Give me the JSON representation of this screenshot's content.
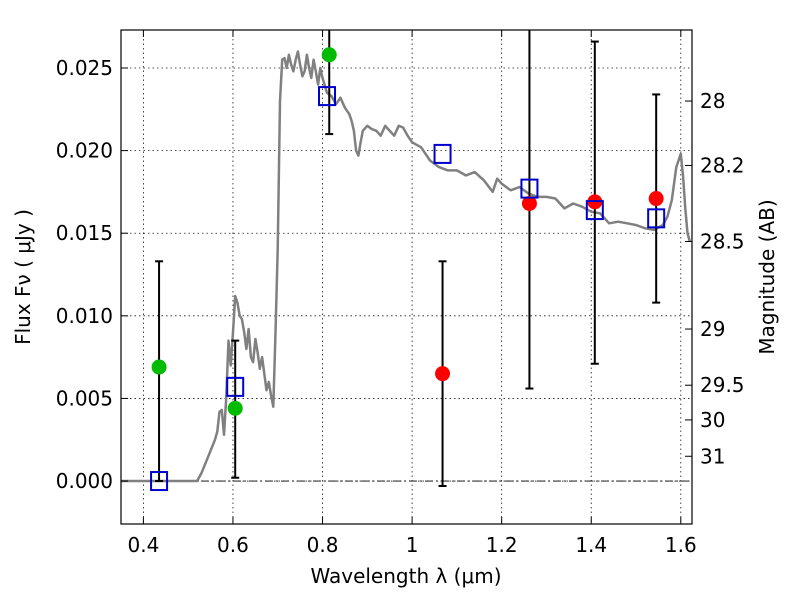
{
  "chart_data": {
    "type": "scatter",
    "xlabel": "Wavelength  λ (μm)",
    "ylabel": "Flux  Fν  ( μJy )",
    "right_ylabel": "Magnitude (AB)",
    "xlim": [
      0.35,
      1.625
    ],
    "ylim": [
      -0.0026,
      0.0273
    ],
    "grid": true,
    "x_ticks": [
      {
        "value": 0.4,
        "label": "0.4"
      },
      {
        "value": 0.6,
        "label": "0.6"
      },
      {
        "value": 0.8,
        "label": "0.8"
      },
      {
        "value": 1.0,
        "label": "1"
      },
      {
        "value": 1.2,
        "label": "1.2"
      },
      {
        "value": 1.4,
        "label": "1.4"
      },
      {
        "value": 1.6,
        "label": "1.6"
      }
    ],
    "y_ticks": [
      {
        "value": 0.0,
        "label": "0.000"
      },
      {
        "value": 0.005,
        "label": "0.005"
      },
      {
        "value": 0.01,
        "label": "0.010"
      },
      {
        "value": 0.015,
        "label": "0.015"
      },
      {
        "value": 0.02,
        "label": "0.020"
      },
      {
        "value": 0.025,
        "label": "0.025"
      }
    ],
    "right_y_ticks": [
      {
        "flux": 0.023,
        "label": "28"
      },
      {
        "flux": 0.0191,
        "label": "28.2"
      },
      {
        "flux": 0.0145,
        "label": "28.5"
      },
      {
        "flux": 0.0092,
        "label": "29"
      },
      {
        "flux": 0.0058,
        "label": "29.5"
      },
      {
        "flux": 0.0037,
        "label": "30"
      },
      {
        "flux": 0.0015,
        "label": "31"
      }
    ],
    "colors": {
      "model": "#808080",
      "green": "#00bb00",
      "red": "#ff0000",
      "square": "#0000cc",
      "errorbar": "#000000"
    },
    "model_spectrum": {
      "x": [
        0.35,
        0.52,
        0.53,
        0.545,
        0.56,
        0.565,
        0.57,
        0.575,
        0.58,
        0.585,
        0.59,
        0.595,
        0.6,
        0.605,
        0.61,
        0.615,
        0.62,
        0.625,
        0.63,
        0.635,
        0.64,
        0.645,
        0.65,
        0.655,
        0.66,
        0.665,
        0.67,
        0.675,
        0.68,
        0.685,
        0.69,
        0.695,
        0.7,
        0.705,
        0.71,
        0.715,
        0.72,
        0.725,
        0.73,
        0.735,
        0.74,
        0.745,
        0.75,
        0.755,
        0.76,
        0.765,
        0.77,
        0.775,
        0.78,
        0.785,
        0.79,
        0.795,
        0.8,
        0.81,
        0.82,
        0.83,
        0.84,
        0.85,
        0.86,
        0.865,
        0.87,
        0.875,
        0.88,
        0.885,
        0.89,
        0.9,
        0.91,
        0.92,
        0.93,
        0.94,
        0.95,
        0.96,
        0.97,
        0.98,
        0.99,
        1.0,
        1.02,
        1.04,
        1.06,
        1.08,
        1.1,
        1.12,
        1.14,
        1.16,
        1.18,
        1.19,
        1.2,
        1.22,
        1.24,
        1.26,
        1.28,
        1.3,
        1.32,
        1.34,
        1.36,
        1.38,
        1.4,
        1.42,
        1.44,
        1.46,
        1.48,
        1.5,
        1.52,
        1.54,
        1.56,
        1.57,
        1.58,
        1.59,
        1.6,
        1.605,
        1.61,
        1.615,
        1.62
      ],
      "y": [
        0.0,
        0.0,
        0.0005,
        0.0015,
        0.0025,
        0.003,
        0.0042,
        0.0043,
        0.0028,
        0.005,
        0.0085,
        0.007,
        0.009,
        0.0112,
        0.0108,
        0.01,
        0.0098,
        0.009,
        0.008,
        0.0092,
        0.0075,
        0.0072,
        0.0086,
        0.0078,
        0.0068,
        0.0075,
        0.0065,
        0.0055,
        0.006,
        0.0052,
        0.0045,
        0.009,
        0.014,
        0.023,
        0.0255,
        0.0256,
        0.025,
        0.0258,
        0.0252,
        0.0248,
        0.0255,
        0.026,
        0.0252,
        0.0245,
        0.0248,
        0.0258,
        0.025,
        0.0244,
        0.0255,
        0.0248,
        0.024,
        0.025,
        0.0244,
        0.0235,
        0.0233,
        0.0228,
        0.0232,
        0.0226,
        0.0222,
        0.0218,
        0.0212,
        0.02,
        0.0197,
        0.0205,
        0.0212,
        0.0215,
        0.0213,
        0.0212,
        0.0209,
        0.0215,
        0.0212,
        0.0209,
        0.0215,
        0.0214,
        0.0209,
        0.0205,
        0.0202,
        0.0194,
        0.019,
        0.0188,
        0.0188,
        0.0185,
        0.0187,
        0.0182,
        0.0175,
        0.0183,
        0.018,
        0.0176,
        0.0178,
        0.0174,
        0.0172,
        0.0172,
        0.0171,
        0.0165,
        0.0168,
        0.0166,
        0.0163,
        0.0162,
        0.0156,
        0.0157,
        0.0156,
        0.0155,
        0.0153,
        0.0152,
        0.0155,
        0.016,
        0.017,
        0.019,
        0.0198,
        0.0185,
        0.0165,
        0.015,
        0.0145
      ]
    },
    "series": [
      {
        "marker": "circle",
        "color": "green",
        "x": [
          0.435,
          0.605,
          0.815
        ],
        "y": [
          0.0069,
          0.0044,
          0.0258
        ]
      },
      {
        "marker": "circle",
        "color": "red",
        "x": [
          1.068,
          1.262,
          1.408,
          1.545
        ],
        "y": [
          0.0065,
          0.0168,
          0.0169,
          0.0171
        ]
      },
      {
        "marker": "square",
        "color": "square",
        "x": [
          0.435,
          0.605,
          0.81,
          1.068,
          1.262,
          1.408,
          1.545
        ],
        "y": [
          0.0,
          0.0057,
          0.0233,
          0.0198,
          0.0177,
          0.0164,
          0.0159
        ]
      }
    ],
    "error_bars": [
      {
        "x": 0.435,
        "low": 0.0,
        "high": 0.0133
      },
      {
        "x": 0.605,
        "low": 0.0002,
        "high": 0.0085
      },
      {
        "x": 0.815,
        "low": 0.021,
        "high": 0.028
      },
      {
        "x": 1.068,
        "low": -0.0003,
        "high": 0.0133
      },
      {
        "x": 1.262,
        "low": 0.0056,
        "high": 0.028
      },
      {
        "x": 1.408,
        "low": 0.0071,
        "high": 0.0266
      },
      {
        "x": 1.545,
        "low": 0.0108,
        "high": 0.0234
      }
    ]
  }
}
